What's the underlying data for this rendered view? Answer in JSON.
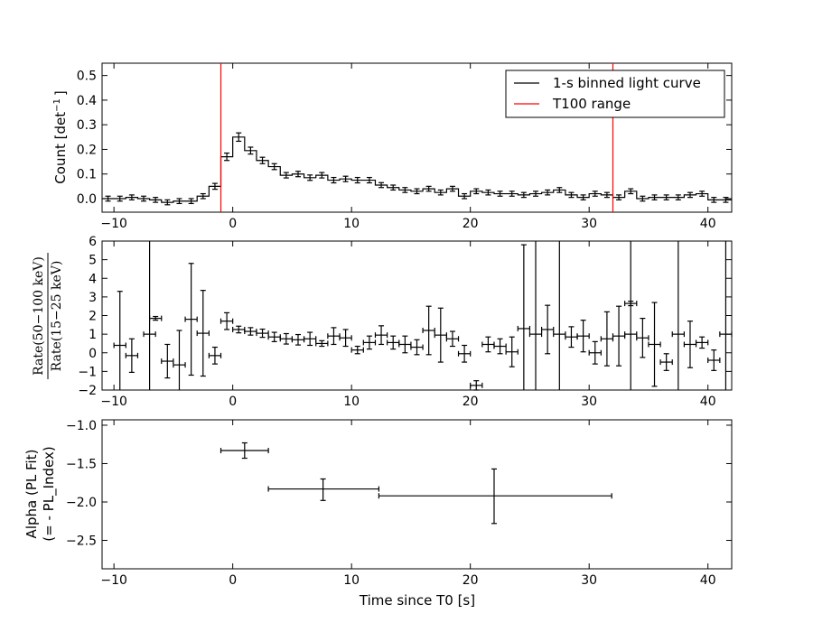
{
  "chart_data": [
    {
      "type": "line",
      "id": "light-curve",
      "xlabel": "",
      "ylabel": "Count [det$^{-1}$ ]",
      "ylabel_main": "Count [det",
      "ylabel_sup": "−1",
      "ylabel_close": "]",
      "xlim": [
        -11,
        42
      ],
      "ylim": [
        -0.055,
        0.55
      ],
      "xticks": [
        -10,
        0,
        10,
        20,
        30,
        40
      ],
      "xtick_labels": [
        "−10",
        "0",
        "10",
        "20",
        "30",
        "40"
      ],
      "yticks": [
        0.0,
        0.1,
        0.2,
        0.3,
        0.4,
        0.5
      ],
      "ytick_labels": [
        "0.0",
        "0.1",
        "0.2",
        "0.3",
        "0.4",
        "0.5"
      ],
      "t100_range": [
        -1,
        32
      ],
      "legend": {
        "placement": "top-right",
        "entries": [
          {
            "label": "1-s binned light curve",
            "color": "#000000"
          },
          {
            "label": "T100 range",
            "color": "#ff0000"
          }
        ]
      },
      "series": [
        {
          "name": "1-s binned light curve",
          "bin_start": -11,
          "bin_width": 1,
          "values": [
            0.0,
            0.0,
            0.005,
            0.0,
            -0.005,
            -0.015,
            -0.01,
            -0.01,
            0.01,
            0.05,
            0.17,
            0.25,
            0.195,
            0.155,
            0.13,
            0.095,
            0.1,
            0.085,
            0.095,
            0.075,
            0.08,
            0.075,
            0.075,
            0.055,
            0.045,
            0.035,
            0.03,
            0.04,
            0.025,
            0.04,
            0.01,
            0.03,
            0.025,
            0.02,
            0.02,
            0.015,
            0.02,
            0.025,
            0.035,
            0.015,
            0.005,
            0.02,
            0.015,
            0.005,
            0.03,
            0.0,
            0.005,
            0.005,
            0.005,
            0.015,
            0.02,
            -0.005,
            -0.005
          ],
          "errors": [
            0.01,
            0.01,
            0.01,
            0.01,
            0.01,
            0.01,
            0.01,
            0.01,
            0.01,
            0.012,
            0.015,
            0.017,
            0.014,
            0.013,
            0.012,
            0.011,
            0.011,
            0.011,
            0.011,
            0.011,
            0.011,
            0.011,
            0.011,
            0.01,
            0.01,
            0.01,
            0.01,
            0.01,
            0.01,
            0.01,
            0.01,
            0.01,
            0.01,
            0.01,
            0.01,
            0.01,
            0.01,
            0.01,
            0.01,
            0.01,
            0.01,
            0.01,
            0.01,
            0.01,
            0.01,
            0.01,
            0.01,
            0.01,
            0.01,
            0.01,
            0.01,
            0.01,
            0.01
          ]
        }
      ]
    },
    {
      "type": "scatter",
      "id": "hardness-ratio",
      "xlabel": "",
      "ylabel": "Rate(50−100 keV) / Rate(15−25 keV)",
      "ylabel_num": "Rate(50−100 keV)",
      "ylabel_den": "Rate(15−25 keV)",
      "xlim": [
        -11,
        42
      ],
      "ylim": [
        -2,
        6
      ],
      "xticks": [
        -10,
        0,
        10,
        20,
        30,
        40
      ],
      "xtick_labels": [
        "−10",
        "0",
        "10",
        "20",
        "30",
        "40"
      ],
      "yticks": [
        -2,
        -1,
        0,
        1,
        2,
        3,
        4,
        5,
        6
      ],
      "ytick_labels": [
        "−2",
        "−1",
        "0",
        "1",
        "2",
        "3",
        "4",
        "5",
        "6"
      ],
      "points": [
        {
          "x": -9.5,
          "xerr": 0.5,
          "y": 0.4,
          "yerr": 2.9
        },
        {
          "x": -8.5,
          "xerr": 0.5,
          "y": -0.15,
          "yerr": 0.9
        },
        {
          "x": -7.0,
          "xerr": 0.5,
          "y": 1.0,
          "yerr": 9.0
        },
        {
          "x": -6.5,
          "xerr": 0.5,
          "y": 1.85,
          "yerr": 0.1
        },
        {
          "x": -5.5,
          "xerr": 0.5,
          "y": -0.45,
          "yerr": 0.9
        },
        {
          "x": -4.5,
          "xerr": 0.5,
          "y": -0.65,
          "yerr": 1.85
        },
        {
          "x": -3.5,
          "xerr": 0.5,
          "y": 1.8,
          "yerr": 3.0
        },
        {
          "x": -2.5,
          "xerr": 0.5,
          "y": 1.05,
          "yerr": 2.3
        },
        {
          "x": -1.5,
          "xerr": 0.5,
          "y": -0.15,
          "yerr": 0.45
        },
        {
          "x": -0.5,
          "xerr": 0.5,
          "y": 1.7,
          "yerr": 0.45
        },
        {
          "x": 0.5,
          "xerr": 0.5,
          "y": 1.25,
          "yerr": 0.18
        },
        {
          "x": 1.5,
          "xerr": 0.5,
          "y": 1.15,
          "yerr": 0.2
        },
        {
          "x": 2.5,
          "xerr": 0.5,
          "y": 1.05,
          "yerr": 0.22
        },
        {
          "x": 3.5,
          "xerr": 0.5,
          "y": 0.85,
          "yerr": 0.25
        },
        {
          "x": 4.5,
          "xerr": 0.5,
          "y": 0.75,
          "yerr": 0.28
        },
        {
          "x": 5.5,
          "xerr": 0.5,
          "y": 0.7,
          "yerr": 0.28
        },
        {
          "x": 6.5,
          "xerr": 0.5,
          "y": 0.75,
          "yerr": 0.35
        },
        {
          "x": 7.5,
          "xerr": 0.5,
          "y": 0.5,
          "yerr": 0.15
        },
        {
          "x": 8.5,
          "xerr": 0.5,
          "y": 0.9,
          "yerr": 0.45
        },
        {
          "x": 9.5,
          "xerr": 0.5,
          "y": 0.8,
          "yerr": 0.45
        },
        {
          "x": 10.5,
          "xerr": 0.5,
          "y": 0.15,
          "yerr": 0.2
        },
        {
          "x": 11.5,
          "xerr": 0.5,
          "y": 0.55,
          "yerr": 0.35
        },
        {
          "x": 12.5,
          "xerr": 0.5,
          "y": 0.95,
          "yerr": 0.5
        },
        {
          "x": 13.5,
          "xerr": 0.5,
          "y": 0.55,
          "yerr": 0.35
        },
        {
          "x": 14.5,
          "xerr": 0.5,
          "y": 0.45,
          "yerr": 0.45
        },
        {
          "x": 15.5,
          "xerr": 0.5,
          "y": 0.3,
          "yerr": 0.4
        },
        {
          "x": 16.5,
          "xerr": 0.5,
          "y": 1.2,
          "yerr": 1.3
        },
        {
          "x": 17.5,
          "xerr": 0.5,
          "y": 0.95,
          "yerr": 1.45
        },
        {
          "x": 18.5,
          "xerr": 0.5,
          "y": 0.75,
          "yerr": 0.4
        },
        {
          "x": 19.5,
          "xerr": 0.5,
          "y": -0.05,
          "yerr": 0.45
        },
        {
          "x": 20.5,
          "xerr": 0.5,
          "y": -1.75,
          "yerr": 0.25
        },
        {
          "x": 21.5,
          "xerr": 0.5,
          "y": 0.45,
          "yerr": 0.4
        },
        {
          "x": 22.5,
          "xerr": 0.5,
          "y": 0.35,
          "yerr": 0.4
        },
        {
          "x": 23.5,
          "xerr": 0.5,
          "y": 0.05,
          "yerr": 0.8
        },
        {
          "x": 24.5,
          "xerr": 0.5,
          "y": 1.3,
          "yerr": 4.5
        },
        {
          "x": 25.5,
          "xerr": 0.5,
          "y": 1.0,
          "yerr": 9.0
        },
        {
          "x": 26.5,
          "xerr": 0.5,
          "y": 1.25,
          "yerr": 1.3
        },
        {
          "x": 27.5,
          "xerr": 0.5,
          "y": 1.0,
          "yerr": 9.0
        },
        {
          "x": 28.5,
          "xerr": 0.5,
          "y": 0.85,
          "yerr": 0.55
        },
        {
          "x": 29.5,
          "xerr": 0.5,
          "y": 0.9,
          "yerr": 0.85
        },
        {
          "x": 30.5,
          "xerr": 0.5,
          "y": 0.0,
          "yerr": 0.6
        },
        {
          "x": 31.5,
          "xerr": 0.5,
          "y": 0.75,
          "yerr": 1.45
        },
        {
          "x": 32.5,
          "xerr": 0.5,
          "y": 0.9,
          "yerr": 1.6
        },
        {
          "x": 33.5,
          "xerr": 0.5,
          "y": 2.65,
          "yerr": 0.12
        },
        {
          "x": 33.5,
          "xerr": 0.5,
          "y": 1.0,
          "yerr": 9.0
        },
        {
          "x": 34.5,
          "xerr": 0.5,
          "y": 0.8,
          "yerr": 1.05
        },
        {
          "x": 35.5,
          "xerr": 0.5,
          "y": 0.45,
          "yerr": 2.25
        },
        {
          "x": 36.5,
          "xerr": 0.5,
          "y": -0.5,
          "yerr": 0.45
        },
        {
          "x": 37.5,
          "xerr": 0.5,
          "y": 1.0,
          "yerr": 9.0
        },
        {
          "x": 38.5,
          "xerr": 0.5,
          "y": 0.45,
          "yerr": 1.25
        },
        {
          "x": 39.5,
          "xerr": 0.5,
          "y": 0.55,
          "yerr": 0.3
        },
        {
          "x": 40.5,
          "xerr": 0.5,
          "y": -0.4,
          "yerr": 0.55
        },
        {
          "x": 41.5,
          "xerr": 0.5,
          "y": 1.0,
          "yerr": 9.0
        }
      ]
    },
    {
      "type": "scatter",
      "id": "alpha-fit",
      "xlabel": "Time since T0 [s]",
      "ylabel": "Alpha (PL Fit) (= - PL_Index)",
      "ylabel_line1": "Alpha (PL Fit)",
      "ylabel_line2": "(= - PL_Index)",
      "xlim": [
        -11,
        42
      ],
      "ylim": [
        -2.87,
        -0.93
      ],
      "xticks": [
        -10,
        0,
        10,
        20,
        30,
        40
      ],
      "xtick_labels": [
        "−10",
        "0",
        "10",
        "20",
        "30",
        "40"
      ],
      "yticks": [
        -1.0,
        -1.5,
        -2.0,
        -2.5
      ],
      "ytick_labels": [
        "−1.0",
        "−1.5",
        "−2.0",
        "−2.5"
      ],
      "points": [
        {
          "x": 1.0,
          "xlo": -1.0,
          "xhi": 3.0,
          "y": -1.33,
          "ylo": -1.43,
          "yhi": -1.23
        },
        {
          "x": 7.6,
          "xlo": 3.0,
          "xhi": 12.3,
          "y": -1.83,
          "ylo": -1.98,
          "yhi": -1.7
        },
        {
          "x": 22.0,
          "xlo": 12.3,
          "xhi": 31.9,
          "y": -1.92,
          "ylo": -2.28,
          "yhi": -1.57
        }
      ]
    }
  ]
}
